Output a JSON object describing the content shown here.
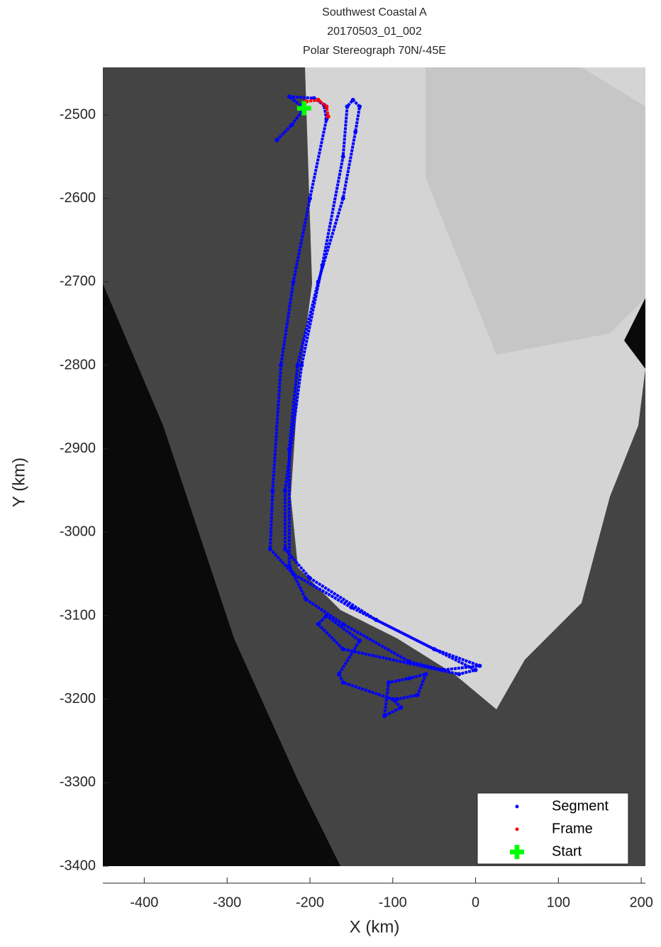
{
  "chart_data": {
    "type": "scatter",
    "title": [
      "Southwest Coastal A",
      "20170503_01_002",
      "Polar Stereograph 70N/-45E"
    ],
    "xlabel": "X (km)",
    "ylabel": "Y (km)",
    "xlim": [
      -450,
      205
    ],
    "ylim": [
      -3400,
      -2443
    ],
    "xticks": [
      -400,
      -300,
      -200,
      -100,
      0,
      100,
      200
    ],
    "yticks": [
      -3400,
      -3300,
      -3200,
      -3100,
      -3000,
      -2900,
      -2800,
      -2700,
      -2600,
      -2500
    ],
    "legend": "lower right",
    "series": [
      {
        "name": "Segment",
        "color": "#0000ff",
        "marker": "dot",
        "x": [
          -240,
          -222,
          -207,
          -225,
          -195,
          -183,
          -180,
          -200,
          -220,
          -235,
          -245,
          -248,
          -220,
          -150,
          -50,
          5,
          -40,
          -80,
          -160,
          -205,
          -225,
          -225,
          -215,
          -190,
          -160,
          -145,
          -140,
          -148,
          -155,
          -160,
          -185,
          -210,
          -230,
          -230,
          -200,
          -120,
          0,
          -20,
          -160,
          -190,
          -180,
          -140,
          -165,
          -160,
          -100,
          -90,
          -110,
          -105,
          -80,
          -60,
          -70,
          -95
        ],
        "values": [
          -2530,
          -2512,
          -2492,
          -2478,
          -2480,
          -2488,
          -2505,
          -2600,
          -2700,
          -2800,
          -2950,
          -3020,
          -3050,
          -3090,
          -3140,
          -3160,
          -3165,
          -3155,
          -3110,
          -3080,
          -3040,
          -2900,
          -2800,
          -2700,
          -2600,
          -2520,
          -2490,
          -2482,
          -2490,
          -2550,
          -2680,
          -2800,
          -2950,
          -3020,
          -3055,
          -3105,
          -3165,
          -3170,
          -3140,
          -3110,
          -3100,
          -3130,
          -3170,
          -3180,
          -3200,
          -3210,
          -3220,
          -3180,
          -3175,
          -3170,
          -3195,
          -3200
        ]
      },
      {
        "name": "Frame",
        "color": "#ff0000",
        "marker": "dot",
        "x": [
          -205,
          -190,
          -180,
          -178
        ],
        "values": [
          -2484,
          -2482,
          -2490,
          -2502
        ]
      },
      {
        "name": "Start",
        "color": "#00ff00",
        "marker": "cross",
        "x": [
          -207
        ],
        "values": [
          -2492
        ]
      }
    ]
  }
}
